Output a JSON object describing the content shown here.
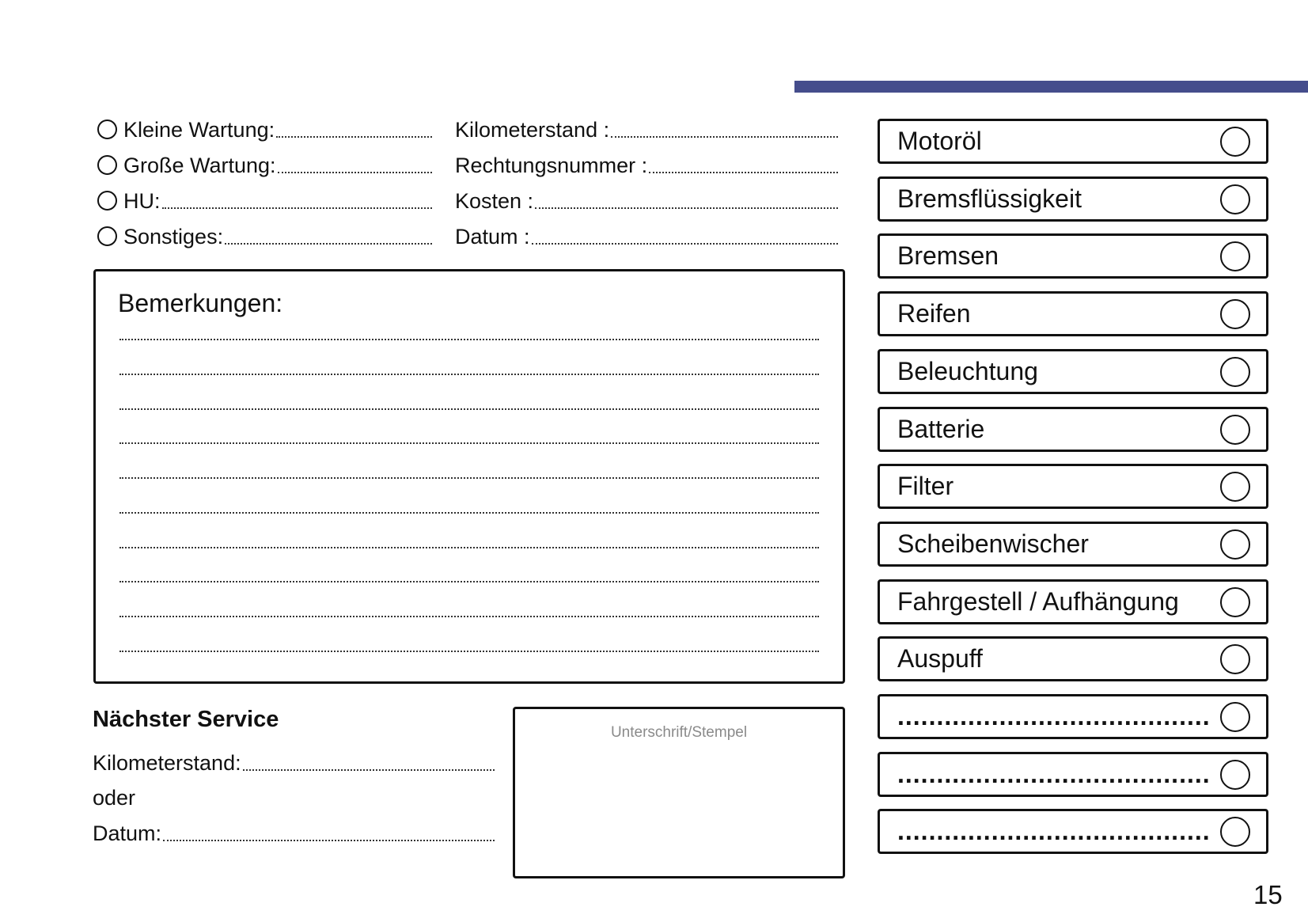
{
  "accent_color": "#454d8c",
  "left_options": [
    {
      "label": "Kleine Wartung:"
    },
    {
      "label": "Große Wartung:"
    },
    {
      "label": "HU:"
    },
    {
      "label": "Sonstiges:"
    }
  ],
  "right_fields": [
    {
      "label": "Kilometerstand :"
    },
    {
      "label": "Rechtungsnummer :"
    },
    {
      "label": "Kosten :"
    },
    {
      "label": "Datum :"
    }
  ],
  "remarks": {
    "title": "Bemerkungen:"
  },
  "checklist": [
    {
      "label": "Motoröl"
    },
    {
      "label": "Bremsflüssigkeit"
    },
    {
      "label": "Bremsen"
    },
    {
      "label": "Reifen"
    },
    {
      "label": "Beleuchtung"
    },
    {
      "label": "Batterie"
    },
    {
      "label": "Filter"
    },
    {
      "label": "Scheibenwischer"
    },
    {
      "label": "Fahrgestell / Aufhängung"
    },
    {
      "label": "Auspuff"
    },
    {
      "label": "........................................"
    },
    {
      "label": "........................................"
    },
    {
      "label": "........................................"
    }
  ],
  "next_service": {
    "title": "Nächster Service",
    "km_label": "Kilometerstand:",
    "or_label": "oder",
    "date_label": "Datum:"
  },
  "signature": {
    "label": "Unterschrift/Stempel"
  },
  "page_number": "15"
}
